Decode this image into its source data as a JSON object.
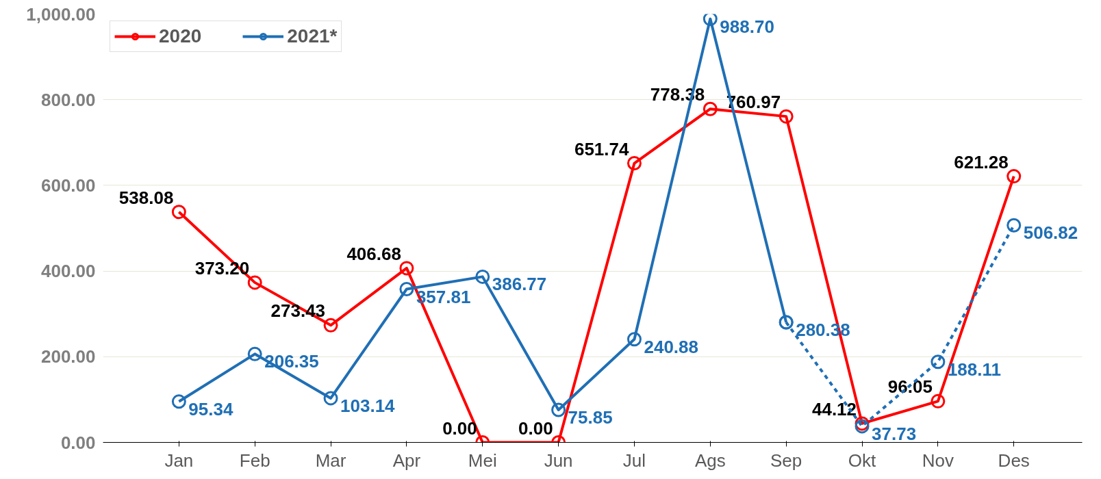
{
  "chart_data": {
    "type": "line",
    "categories": [
      "Jan",
      "Feb",
      "Mar",
      "Apr",
      "Mei",
      "Jun",
      "Jul",
      "Ags",
      "Sep",
      "Okt",
      "Nov",
      "Des"
    ],
    "series": [
      {
        "name": "2020",
        "color": "#ff0000",
        "values": [
          538.08,
          373.2,
          273.43,
          406.68,
          0.0,
          0.0,
          651.74,
          778.38,
          760.97,
          44.12,
          96.05,
          621.28
        ],
        "value_labels": [
          "538.08",
          "373.20",
          "273.43",
          "406.68",
          "0.00",
          "0.00",
          "651.74",
          "778.38",
          "760.97",
          "44.12",
          "96.05",
          "621.28"
        ]
      },
      {
        "name": "2021*",
        "color": "#1f6fb5",
        "values": [
          95.34,
          206.35,
          103.14,
          357.81,
          386.77,
          75.85,
          240.88,
          988.7,
          280.38,
          null,
          null,
          null
        ],
        "value_labels": [
          "95.34",
          "206.35",
          "103.14",
          "357.81",
          "386.77",
          "75.85",
          "240.88",
          "988.70",
          "280.38",
          null,
          null,
          null
        ]
      },
      {
        "color": "#1f6fb5",
        "line_style": "dashed",
        "values": [
          null,
          null,
          null,
          null,
          null,
          null,
          null,
          null,
          280.38,
          37.73,
          188.11,
          506.82
        ],
        "value_labels": [
          null,
          null,
          null,
          null,
          null,
          null,
          null,
          null,
          null,
          "37.73",
          "188.11",
          "506.82"
        ]
      }
    ],
    "ylim": [
      0,
      1000
    ],
    "yticks": [
      {
        "value": 0,
        "label": "0.00"
      },
      {
        "value": 200,
        "label": "200.00"
      },
      {
        "value": 400,
        "label": "400.00"
      },
      {
        "value": 600,
        "label": "600.00"
      },
      {
        "value": 800,
        "label": "800.00"
      },
      {
        "value": 1000,
        "label": "1,000.00"
      }
    ],
    "grid": "y",
    "legend": "top left",
    "marker": "circle",
    "line_style": "solid"
  }
}
